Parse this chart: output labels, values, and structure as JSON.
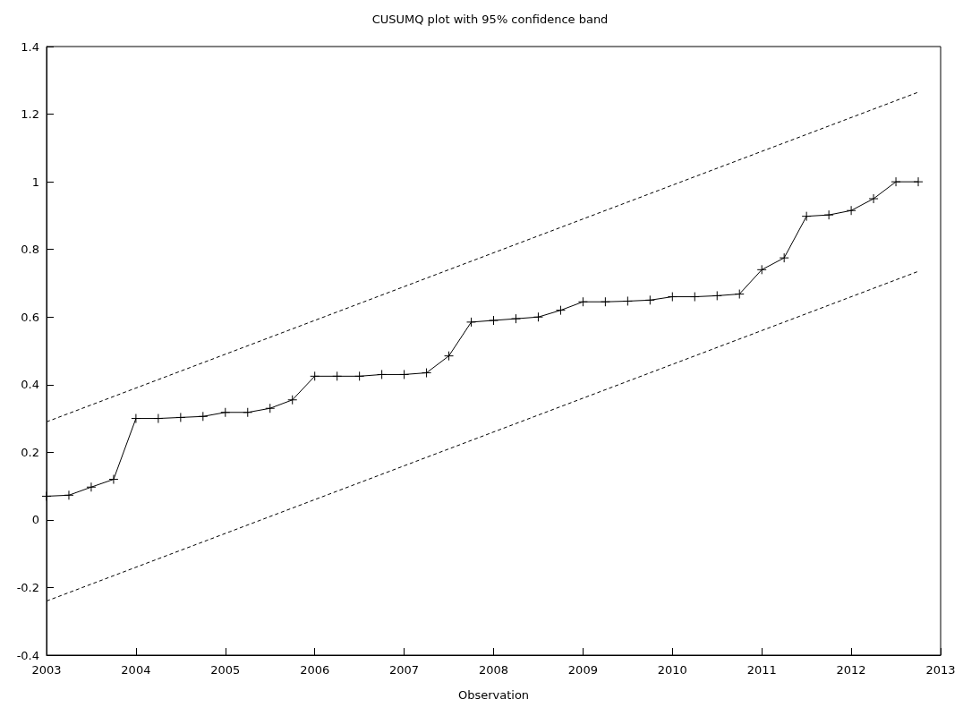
{
  "chart_data": {
    "type": "line",
    "title": "CUSUMQ plot with 95% confidence band",
    "xlabel": "Observation",
    "xlim": [
      2003,
      2013
    ],
    "xticks": [
      2003,
      2004,
      2005,
      2006,
      2007,
      2008,
      2009,
      2010,
      2011,
      2012,
      2013
    ],
    "ylim": [
      -0.4,
      1.4
    ],
    "yticks": [
      -0.4,
      -0.2,
      0,
      0.2,
      0.4,
      0.6,
      0.8,
      1,
      1.2,
      1.4
    ],
    "grid": false,
    "series": [
      {
        "color": "#000000",
        "marker": "cross",
        "line_style": "solid",
        "x": [
          2003,
          2003.25,
          2003.5,
          2003.75,
          2004,
          2004.25,
          2004.5,
          2004.75,
          2005,
          2005.25,
          2005.5,
          2005.75,
          2006,
          2006.25,
          2006.5,
          2006.75,
          2007,
          2007.25,
          2007.5,
          2007.75,
          2008,
          2008.25,
          2008.5,
          2008.75,
          2009,
          2009.25,
          2009.5,
          2009.75,
          2010,
          2010.25,
          2010.5,
          2010.75,
          2011,
          2011.25,
          2011.5,
          2011.75,
          2012,
          2012.25,
          2012.5,
          2012.75
        ],
        "values": [
          0.07,
          0.073,
          0.097,
          0.12,
          0.3,
          0.3,
          0.303,
          0.306,
          0.318,
          0.318,
          0.33,
          0.355,
          0.425,
          0.425,
          0.425,
          0.43,
          0.43,
          0.435,
          0.485,
          0.585,
          0.59,
          0.595,
          0.6,
          0.62,
          0.645,
          0.645,
          0.647,
          0.65,
          0.66,
          0.66,
          0.663,
          0.668,
          0.74,
          0.775,
          0.898,
          0.902,
          0.915,
          0.95,
          1.0,
          1.0
        ]
      },
      {
        "color": "#000000",
        "marker": "none",
        "line_style": "dashed",
        "x": [
          2003,
          2012.75
        ],
        "values": [
          0.29,
          1.265
        ]
      },
      {
        "color": "#000000",
        "marker": "none",
        "line_style": "dashed",
        "x": [
          2003,
          2012.75
        ],
        "values": [
          -0.24,
          0.735
        ]
      }
    ]
  }
}
